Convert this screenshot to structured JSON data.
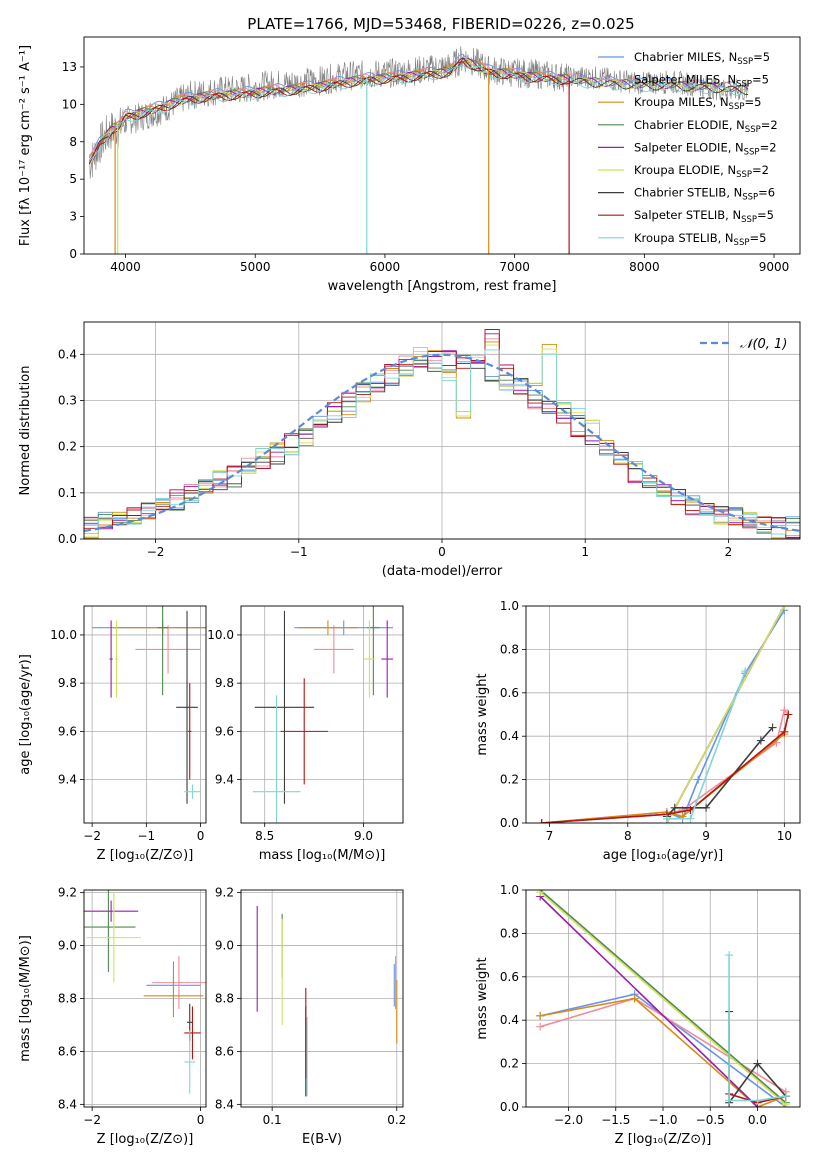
{
  "figure_title": "PLATE=1766, MJD=53468, FIBERID=0226, z=0.025",
  "colors": [
    "#6495ed",
    "#f08c9c",
    "#d98a16",
    "#4f8a4f",
    "#9a1ea8",
    "#d4e05a",
    "#3d3d3d",
    "#b31414",
    "#7ed6d6"
  ],
  "legend": [
    {
      "label": "Chabrier MILES, N",
      "sub": "SSP",
      "suffix": "=5",
      "color": "#6495ed"
    },
    {
      "label": "Salpeter MILES, N",
      "sub": "SSP",
      "suffix": "=5",
      "color": "#f08c9c"
    },
    {
      "label": "Kroupa MILES, N",
      "sub": "SSP",
      "suffix": "=5",
      "color": "#d98a16"
    },
    {
      "label": "Chabrier ELODIE, N",
      "sub": "SSP",
      "suffix": "=2",
      "color": "#4f8a4f"
    },
    {
      "label": "Salpeter ELODIE, N",
      "sub": "SSP",
      "suffix": "=2",
      "color": "#9a1ea8"
    },
    {
      "label": "Kroupa ELODIE, N",
      "sub": "SSP",
      "suffix": "=2",
      "color": "#d4e05a"
    },
    {
      "label": "Chabrier STELIB, N",
      "sub": "SSP",
      "suffix": "=6",
      "color": "#3d3d3d"
    },
    {
      "label": "Salpeter STELIB, N",
      "sub": "SSP",
      "suffix": "=5",
      "color": "#b31414"
    },
    {
      "label": "Kroupa STELIB, N",
      "sub": "SSP",
      "suffix": "=5",
      "color": "#7ed6d6"
    }
  ],
  "chart_data": [
    {
      "id": "spectrum",
      "type": "line",
      "title": "PLATE=1766, MJD=53468, FIBERID=0226, z=0.025",
      "xlabel": "wavelength [Angstrom, rest frame]",
      "ylabel": "Flux [fλ 10⁻¹⁷ erg cm⁻² s⁻¹ A⁻¹]",
      "xlim": [
        3680,
        9200
      ],
      "ylim": [
        0,
        14.5
      ],
      "xticks": [
        4000,
        5000,
        6000,
        7000,
        8000,
        9000
      ],
      "yticks": [
        0.0,
        2.5,
        5.0,
        7.5,
        10.0,
        12.5
      ],
      "data_wavelength": [
        3720,
        3750,
        3800,
        3850,
        3900,
        3950,
        4000,
        4100,
        4200,
        4300,
        4400,
        4500,
        4700,
        4900,
        5100,
        5300,
        5500,
        5700,
        5900,
        6100,
        6300,
        6500,
        6560,
        6600,
        6700,
        6800,
        7000,
        7200,
        7400,
        7600,
        7800,
        8000,
        8200,
        8400,
        8600,
        8800
      ],
      "data_flux": [
        6.0,
        6.4,
        7.3,
        7.9,
        8.3,
        8.4,
        8.9,
        9.1,
        9.4,
        9.7,
        10.2,
        10.6,
        10.9,
        11.0,
        11.3,
        11.4,
        11.6,
        11.9,
        12.0,
        12.1,
        12.3,
        12.5,
        12.8,
        13.1,
        12.8,
        12.3,
        12.1,
        12.0,
        11.8,
        11.8,
        11.6,
        11.4,
        11.5,
        11.3,
        11.0,
        10.9
      ],
      "model_flux_kroupa_stelib": [
        6.4,
        6.7,
        7.6,
        8.1,
        8.6,
        8.7,
        9.4,
        9.6,
        9.8,
        10.1,
        10.4,
        10.6,
        10.8,
        10.9,
        11.1,
        11.2,
        11.4,
        11.7,
        11.9,
        12.0,
        12.2,
        12.4,
        12.9,
        13.2,
        12.8,
        12.4,
        12.2,
        12.0,
        11.9,
        11.7,
        11.6,
        11.5,
        11.5,
        11.4,
        11.3,
        11.2
      ]
    },
    {
      "id": "residuals",
      "type": "line",
      "xlabel": "(data-model)/error",
      "ylabel": "Normed distribution",
      "xlim": [
        -2.5,
        2.5
      ],
      "ylim": [
        0,
        0.47
      ],
      "xticks": [
        -2,
        -1,
        0,
        1,
        2
      ],
      "yticks": [
        0.0,
        0.1,
        0.2,
        0.3,
        0.4
      ],
      "gaussian_label": "𝒩(0, 1)",
      "bin_edges": [
        -2.5,
        -2.4,
        -2.3,
        -2.2,
        -2.1,
        -2.0,
        -1.9,
        -1.8,
        -1.7,
        -1.6,
        -1.5,
        -1.4,
        -1.3,
        -1.2,
        -1.1,
        -1.0,
        -0.9,
        -0.8,
        -0.7,
        -0.6,
        -0.5,
        -0.4,
        -0.3,
        -0.2,
        -0.1,
        0.0,
        0.1,
        0.2,
        0.3,
        0.4,
        0.5,
        0.6,
        0.7,
        0.8,
        0.9,
        1.0,
        1.1,
        1.2,
        1.3,
        1.4,
        1.5,
        1.6,
        1.7,
        1.8,
        1.9,
        2.0,
        2.1,
        2.2,
        2.3,
        2.4,
        2.5
      ],
      "series_hist": [
        [
          0.03,
          0.04,
          0.05,
          0.05,
          0.06,
          0.07,
          0.08,
          0.09,
          0.11,
          0.12,
          0.13,
          0.15,
          0.16,
          0.18,
          0.2,
          0.22,
          0.25,
          0.27,
          0.29,
          0.32,
          0.33,
          0.35,
          0.36,
          0.37,
          0.38,
          0.38,
          0.38,
          0.37,
          0.36,
          0.35,
          0.33,
          0.31,
          0.29,
          0.27,
          0.25,
          0.22,
          0.2,
          0.17,
          0.15,
          0.13,
          0.11,
          0.09,
          0.08,
          0.07,
          0.06,
          0.05,
          0.04,
          0.03,
          0.03,
          0.03
        ],
        [
          0.03,
          0.04,
          0.04,
          0.05,
          0.06,
          0.08,
          0.09,
          0.1,
          0.12,
          0.13,
          0.14,
          0.16,
          0.17,
          0.19,
          0.21,
          0.23,
          0.26,
          0.28,
          0.3,
          0.33,
          0.34,
          0.36,
          0.38,
          0.39,
          0.4,
          0.39,
          0.38,
          0.4,
          0.44,
          0.36,
          0.33,
          0.3,
          0.28,
          0.25,
          0.24,
          0.22,
          0.19,
          0.17,
          0.14,
          0.12,
          0.1,
          0.09,
          0.07,
          0.06,
          0.05,
          0.05,
          0.04,
          0.03,
          0.03,
          0.02
        ],
        [
          0.02,
          0.03,
          0.04,
          0.05,
          0.06,
          0.07,
          0.08,
          0.1,
          0.11,
          0.13,
          0.15,
          0.16,
          0.18,
          0.19,
          0.2,
          0.22,
          0.24,
          0.27,
          0.28,
          0.31,
          0.34,
          0.36,
          0.37,
          0.4,
          0.39,
          0.36,
          0.28,
          0.38,
          0.41,
          0.34,
          0.33,
          0.32,
          0.41,
          0.31,
          0.27,
          0.24,
          0.21,
          0.18,
          0.15,
          0.12,
          0.11,
          0.09,
          0.07,
          0.06,
          0.05,
          0.04,
          0.04,
          0.03,
          0.02,
          0.02
        ]
      ]
    },
    {
      "id": "age_vs_Z",
      "type": "scatter",
      "xlabel": "Z [log₁₀(Z/Z⊙)]",
      "ylabel": "age  [log₁₀(age/yr)]",
      "xlim": [
        -2.15,
        0.1
      ],
      "ylim": [
        9.22,
        10.12
      ],
      "xticks": [
        -2,
        -1,
        0
      ],
      "yticks": [
        9.4,
        9.6,
        9.8,
        10.0
      ],
      "points": [
        {
          "x": -0.7,
          "y": 10.03,
          "xerr": 1.3,
          "yerr": 0.03,
          "c": 0
        },
        {
          "x": -0.6,
          "y": 9.94,
          "xerr": 0.6,
          "yerr": 0.1,
          "c": 1
        },
        {
          "x": -0.7,
          "y": 10.03,
          "xerr": 0.9,
          "yerr": 0.03,
          "c": 2
        },
        {
          "x": -0.7,
          "y": 10.03,
          "xerr": 0.1,
          "yerr": 0.28,
          "c": 3
        },
        {
          "x": -1.65,
          "y": 9.9,
          "xerr": 0.03,
          "yerr": 0.16,
          "c": 4
        },
        {
          "x": -1.55,
          "y": 9.9,
          "xerr": 0.03,
          "yerr": 0.16,
          "c": 5
        },
        {
          "x": -0.25,
          "y": 9.7,
          "xerr": 0.2,
          "yerr": 0.4,
          "c": 6
        },
        {
          "x": -0.2,
          "y": 9.6,
          "xerr": 0.03,
          "yerr": 0.2,
          "c": 7
        },
        {
          "x": -0.15,
          "y": 9.35,
          "xerr": 0.15,
          "yerr": 0.03,
          "c": 8
        }
      ]
    },
    {
      "id": "age_vs_mass",
      "type": "scatter",
      "xlabel": "mass [log₁₀(M/M⊙)]",
      "ylabel": "",
      "xlim": [
        8.38,
        9.2
      ],
      "ylim": [
        9.22,
        10.12
      ],
      "xticks": [
        8.5,
        9.0
      ],
      "yticks": [
        9.4,
        9.6,
        9.8,
        10.0
      ],
      "points": [
        {
          "x": 8.9,
          "y": 10.03,
          "xerr": 0.25,
          "yerr": 0.03,
          "c": 0
        },
        {
          "x": 8.85,
          "y": 9.94,
          "xerr": 0.1,
          "yerr": 0.1,
          "c": 1
        },
        {
          "x": 8.82,
          "y": 10.03,
          "xerr": 0.15,
          "yerr": 0.03,
          "c": 2
        },
        {
          "x": 9.05,
          "y": 10.03,
          "xerr": 0.03,
          "yerr": 0.28,
          "c": 3
        },
        {
          "x": 9.12,
          "y": 9.9,
          "xerr": 0.03,
          "yerr": 0.16,
          "c": 4
        },
        {
          "x": 9.03,
          "y": 9.9,
          "xerr": 0.03,
          "yerr": 0.16,
          "c": 5
        },
        {
          "x": 8.6,
          "y": 9.7,
          "xerr": 0.15,
          "yerr": 0.4,
          "c": 6
        },
        {
          "x": 8.7,
          "y": 9.6,
          "xerr": 0.12,
          "yerr": 0.22,
          "c": 7
        },
        {
          "x": 8.56,
          "y": 9.35,
          "xerr": 0.12,
          "yerr": 0.4,
          "c": 8
        }
      ]
    },
    {
      "id": "weight_vs_age",
      "type": "line",
      "xlabel": "age  [log₁₀(age/yr)]",
      "ylabel": "mass weight",
      "xlim": [
        6.7,
        10.2
      ],
      "ylim": [
        0,
        1.0
      ],
      "xticks": [
        7,
        8,
        9,
        10
      ],
      "yticks": [
        0.0,
        0.2,
        0.4,
        0.6,
        0.8,
        1.0
      ],
      "series": [
        {
          "c": 0,
          "x": [
            6.9,
            8.5,
            8.7,
            8.9,
            9.5,
            10.0
          ],
          "y": [
            0.0,
            0.05,
            0.02,
            0.2,
            0.69,
            0.98
          ]
        },
        {
          "c": 1,
          "x": [
            6.9,
            8.5,
            8.7,
            9.9,
            10.0,
            10.05
          ],
          "y": [
            0.0,
            0.04,
            0.06,
            0.37,
            0.52,
            0.5
          ]
        },
        {
          "c": 2,
          "x": [
            6.9,
            8.5,
            8.7,
            10.0,
            10.05
          ],
          "y": [
            0.0,
            0.05,
            0.03,
            0.41,
            0.5
          ]
        },
        {
          "c": 3,
          "x": [
            8.5,
            10.0
          ],
          "y": [
            0.0,
            1.0
          ]
        },
        {
          "c": 4,
          "x": [
            8.5,
            10.0
          ],
          "y": [
            0.0,
            1.0
          ]
        },
        {
          "c": 5,
          "x": [
            8.5,
            10.0
          ],
          "y": [
            0.0,
            1.0
          ]
        },
        {
          "c": 6,
          "x": [
            8.5,
            8.6,
            9.0,
            9.7,
            9.85
          ],
          "y": [
            0.03,
            0.07,
            0.07,
            0.38,
            0.44
          ]
        },
        {
          "c": 7,
          "x": [
            6.9,
            8.5,
            8.8,
            10.0,
            10.05
          ],
          "y": [
            0.0,
            0.04,
            0.06,
            0.42,
            0.5
          ]
        },
        {
          "c": 8,
          "x": [
            8.5,
            8.8,
            9.5
          ],
          "y": [
            0.02,
            0.02,
            0.7
          ]
        }
      ]
    },
    {
      "id": "mass_vs_Z",
      "type": "scatter",
      "xlabel": "Z [log₁₀(Z/Z⊙)]",
      "ylabel": "mass [log₁₀(M/M⊙)]",
      "xlim": [
        -2.15,
        0.1
      ],
      "ylim": [
        8.39,
        9.21
      ],
      "xticks": [
        -2,
        0
      ],
      "yticks": [
        8.4,
        8.6,
        8.8,
        9.0,
        9.2
      ],
      "points": [
        {
          "x": -0.5,
          "y": 8.85,
          "xerr": 0.5,
          "yerr": 0.09,
          "c": 0
        },
        {
          "x": -0.4,
          "y": 8.86,
          "xerr": 0.5,
          "yerr": 0.1,
          "c": 1
        },
        {
          "x": -0.5,
          "y": 8.81,
          "xerr": 0.55,
          "yerr": 0.08,
          "c": 2
        },
        {
          "x": -1.7,
          "y": 9.07,
          "xerr": 0.5,
          "yerr": 0.17,
          "c": 3
        },
        {
          "x": -1.65,
          "y": 9.13,
          "xerr": 0.5,
          "yerr": 0.04,
          "c": 4
        },
        {
          "x": -1.6,
          "y": 9.03,
          "xerr": 0.5,
          "yerr": 0.17,
          "c": 5
        },
        {
          "x": -0.2,
          "y": 8.71,
          "xerr": 0.05,
          "yerr": 0.07,
          "c": 6
        },
        {
          "x": -0.15,
          "y": 8.67,
          "xerr": 0.15,
          "yerr": 0.1,
          "c": 7
        },
        {
          "x": -0.2,
          "y": 8.56,
          "xerr": 0.1,
          "yerr": 0.12,
          "c": 8
        }
      ]
    },
    {
      "id": "mass_vs_ebv",
      "type": "scatter",
      "xlabel": "E(B-V)",
      "ylabel": "",
      "xlim": [
        0.075,
        0.205
      ],
      "ylim": [
        8.39,
        9.21
      ],
      "xticks": [
        0.1,
        0.2
      ],
      "yticks": [
        8.4,
        8.6,
        8.8,
        9.0,
        9.2
      ],
      "points": [
        {
          "x": 0.198,
          "y": 8.85,
          "xerr": 0.0,
          "yerr": 0.08,
          "c": 0
        },
        {
          "x": 0.199,
          "y": 8.86,
          "xerr": 0.0,
          "yerr": 0.1,
          "c": 1
        },
        {
          "x": 0.2,
          "y": 8.75,
          "xerr": 0.0,
          "yerr": 0.12,
          "c": 2
        },
        {
          "x": 0.108,
          "y": 9.0,
          "xerr": 0.0,
          "yerr": 0.12,
          "c": 3
        },
        {
          "x": 0.088,
          "y": 8.95,
          "xerr": 0.0,
          "yerr": 0.2,
          "c": 4
        },
        {
          "x": 0.108,
          "y": 8.9,
          "xerr": 0.0,
          "yerr": 0.2,
          "c": 5
        },
        {
          "x": 0.127,
          "y": 8.6,
          "xerr": 0.0,
          "yerr": 0.17,
          "c": 6
        },
        {
          "x": 0.127,
          "y": 8.67,
          "xerr": 0.0,
          "yerr": 0.17,
          "c": 7
        },
        {
          "x": 0.128,
          "y": 8.58,
          "xerr": 0.0,
          "yerr": 0.15,
          "c": 8
        }
      ]
    },
    {
      "id": "weight_vs_Z",
      "type": "line",
      "xlabel": "Z [log₁₀(Z/Z⊙)]",
      "ylabel": "mass weight",
      "xlim": [
        -2.45,
        0.45
      ],
      "ylim": [
        0,
        1.0
      ],
      "xticks": [
        -2.0,
        -1.5,
        -1.0,
        -0.5,
        0.0
      ],
      "yticks": [
        0.0,
        0.2,
        0.4,
        0.6,
        0.8,
        1.0
      ],
      "series": [
        {
          "c": 0,
          "x": [
            -2.3,
            -1.3,
            0.3
          ],
          "y": [
            0.42,
            0.52,
            0.0
          ]
        },
        {
          "c": 1,
          "x": [
            -2.3,
            -1.3,
            0.3
          ],
          "y": [
            0.37,
            0.5,
            0.07
          ]
        },
        {
          "c": 2,
          "x": [
            -2.3,
            -1.3,
            0.0,
            0.3
          ],
          "y": [
            0.42,
            0.5,
            0.0,
            0.05
          ]
        },
        {
          "c": 3,
          "x": [
            -2.3,
            0.3
          ],
          "y": [
            1.0,
            0.02
          ]
        },
        {
          "c": 4,
          "x": [
            -2.3,
            0.0
          ],
          "y": [
            0.97,
            0.0
          ]
        },
        {
          "c": 5,
          "x": [
            -2.3,
            0.3
          ],
          "y": [
            0.99,
            0.01
          ]
        },
        {
          "c": 6,
          "x": [
            -0.3,
            -0.3,
            0.0,
            0.3
          ],
          "y": [
            0.44,
            0.02,
            0.2,
            0.05
          ]
        },
        {
          "c": 7,
          "x": [
            -0.3,
            0.0,
            0.3
          ],
          "y": [
            0.06,
            0.02,
            0.05
          ]
        },
        {
          "c": 8,
          "x": [
            -0.3,
            -0.3,
            0.0,
            0.3
          ],
          "y": [
            0.7,
            0.03,
            0.03,
            0.05
          ]
        }
      ]
    }
  ]
}
